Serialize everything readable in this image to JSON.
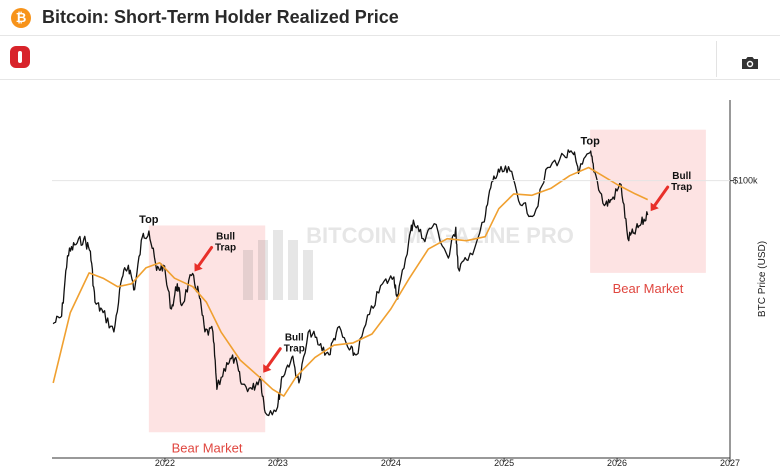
{
  "header": {
    "title": "Bitcoin: Short-Term Holder Realized Price",
    "logo_glyph": "₿",
    "logo_color": "#f7931a"
  },
  "toolbar": {
    "brand_icon": "bitcoin-magazine-icon",
    "camera_icon": "camera-icon",
    "brand_color": "#d8232a"
  },
  "chart_data": {
    "type": "line",
    "title": "",
    "xlabel": "",
    "ylabel": "BTC Price (USD)",
    "y_scale": "log",
    "y_tick_labels": [
      "$100k"
    ],
    "x_tick_labels": [
      "2022",
      "2023",
      "2024",
      "2025",
      "2026",
      "2027"
    ],
    "x_range": [
      "2021-01-01",
      "2027-01-01"
    ],
    "grid": false,
    "watermark": "BITCOIN MAGAZINE PRO",
    "series": [
      {
        "color": "#111111",
        "points": [
          [
            "2021-01-05",
            32000
          ],
          [
            "2021-02-01",
            34000
          ],
          [
            "2021-02-20",
            55000
          ],
          [
            "2021-03-15",
            60000
          ],
          [
            "2021-04-14",
            63000
          ],
          [
            "2021-05-05",
            57000
          ],
          [
            "2021-05-20",
            38000
          ],
          [
            "2021-06-15",
            35000
          ],
          [
            "2021-07-20",
            30000
          ],
          [
            "2021-08-15",
            46000
          ],
          [
            "2021-09-05",
            51000
          ],
          [
            "2021-09-25",
            42000
          ],
          [
            "2021-10-20",
            64000
          ],
          [
            "2021-11-10",
            67000
          ],
          [
            "2021-12-05",
            49000
          ],
          [
            "2021-12-27",
            51000
          ],
          [
            "2022-01-22",
            36000
          ],
          [
            "2022-02-10",
            44000
          ],
          [
            "2022-02-24",
            37000
          ],
          [
            "2022-03-28",
            47000
          ],
          [
            "2022-04-20",
            41000
          ],
          [
            "2022-05-10",
            30000
          ],
          [
            "2022-06-05",
            30000
          ],
          [
            "2022-06-18",
            19000
          ],
          [
            "2022-07-20",
            23500
          ],
          [
            "2022-08-15",
            24300
          ],
          [
            "2022-09-05",
            19800
          ],
          [
            "2022-10-10",
            19000
          ],
          [
            "2022-11-05",
            21000
          ],
          [
            "2022-11-21",
            15800
          ],
          [
            "2022-12-31",
            16500
          ],
          [
            "2023-01-14",
            21000
          ],
          [
            "2023-02-15",
            24500
          ],
          [
            "2023-03-10",
            20000
          ],
          [
            "2023-04-14",
            30500
          ],
          [
            "2023-05-15",
            27000
          ],
          [
            "2023-06-15",
            25000
          ],
          [
            "2023-07-13",
            31000
          ],
          [
            "2023-08-20",
            26000
          ],
          [
            "2023-09-11",
            25000
          ],
          [
            "2023-10-24",
            34500
          ],
          [
            "2023-12-05",
            44000
          ],
          [
            "2024-01-11",
            46500
          ],
          [
            "2024-01-23",
            39000
          ],
          [
            "2024-02-28",
            62000
          ],
          [
            "2024-03-14",
            73000
          ],
          [
            "2024-04-15",
            63000
          ],
          [
            "2024-05-20",
            71000
          ],
          [
            "2024-07-05",
            54000
          ],
          [
            "2024-07-29",
            69000
          ],
          [
            "2024-08-05",
            50000
          ],
          [
            "2024-09-06",
            53000
          ],
          [
            "2024-10-29",
            72000
          ],
          [
            "2024-11-22",
            99000
          ],
          [
            "2024-12-17",
            107000
          ],
          [
            "2025-01-20",
            108000
          ],
          [
            "2025-02-28",
            82000
          ],
          [
            "2025-04-08",
            76000
          ],
          [
            "2025-05-22",
            111000
          ],
          [
            "2025-07-14",
            122000
          ],
          [
            "2025-08-14",
            123000
          ],
          [
            "2025-09-01",
            108000
          ],
          [
            "2025-10-06",
            125000
          ],
          [
            "2025-10-20",
            108000
          ],
          [
            "2025-11-21",
            82000
          ],
          [
            "2025-12-15",
            86000
          ],
          [
            "2026-01-14",
            97000
          ],
          [
            "2026-02-05",
            63000
          ],
          [
            "2026-02-25",
            66000
          ],
          [
            "2026-03-20",
            71000
          ],
          [
            "2026-04-10",
            76000
          ]
        ]
      },
      {
        "color": "#f0a030",
        "points": [
          [
            "2021-01-05",
            20000
          ],
          [
            "2021-03-01",
            35000
          ],
          [
            "2021-05-01",
            48000
          ],
          [
            "2021-06-15",
            46000
          ],
          [
            "2021-08-01",
            43000
          ],
          [
            "2021-09-15",
            44000
          ],
          [
            "2021-11-01",
            50000
          ],
          [
            "2021-12-15",
            52000
          ],
          [
            "2022-02-01",
            46000
          ],
          [
            "2022-04-01",
            43000
          ],
          [
            "2022-05-15",
            38000
          ],
          [
            "2022-07-01",
            30000
          ],
          [
            "2022-09-01",
            24000
          ],
          [
            "2022-11-01",
            21000
          ],
          [
            "2022-12-15",
            19000
          ],
          [
            "2023-01-20",
            18000
          ],
          [
            "2023-03-01",
            21000
          ],
          [
            "2023-05-01",
            24500
          ],
          [
            "2023-07-01",
            27000
          ],
          [
            "2023-09-01",
            27500
          ],
          [
            "2023-11-01",
            29500
          ],
          [
            "2024-01-01",
            36000
          ],
          [
            "2024-03-01",
            46000
          ],
          [
            "2024-05-01",
            58000
          ],
          [
            "2024-07-01",
            63000
          ],
          [
            "2024-09-01",
            62000
          ],
          [
            "2024-11-01",
            64000
          ],
          [
            "2024-12-15",
            80000
          ],
          [
            "2025-02-01",
            90000
          ],
          [
            "2025-04-01",
            89000
          ],
          [
            "2025-06-01",
            94000
          ],
          [
            "2025-08-01",
            104000
          ],
          [
            "2025-10-01",
            111000
          ],
          [
            "2025-11-15",
            104000
          ],
          [
            "2026-01-01",
            97000
          ],
          [
            "2026-03-01",
            90000
          ],
          [
            "2026-04-10",
            86000
          ]
        ]
      }
    ],
    "regions": [
      {
        "label": "Bear Market",
        "from": "2021-11-10",
        "to": "2022-11-21",
        "color": "#fde3e3",
        "label_color": "#e0463f"
      },
      {
        "label": "Bear Market",
        "from": "2025-10-06",
        "to": "2026-10-15",
        "color": "#fde3e3",
        "label_color": "#e0463f"
      }
    ],
    "annotations": [
      {
        "text": "Top",
        "kind": "label",
        "x": "2021-11-10",
        "y": 67000
      },
      {
        "text": "Top",
        "kind": "label",
        "x": "2025-10-06",
        "y": 125000
      },
      {
        "text": "Bull Trap",
        "kind": "arrow",
        "x": "2022-03-28",
        "y": 47000,
        "arrow_color": "#e8302a"
      },
      {
        "text": "Bull Trap",
        "kind": "arrow",
        "x": "2022-11-05",
        "y": 21000,
        "arrow_color": "#e8302a"
      },
      {
        "text": "Bull Trap",
        "kind": "arrow",
        "x": "2026-04-10",
        "y": 76000,
        "arrow_color": "#e8302a"
      }
    ]
  }
}
